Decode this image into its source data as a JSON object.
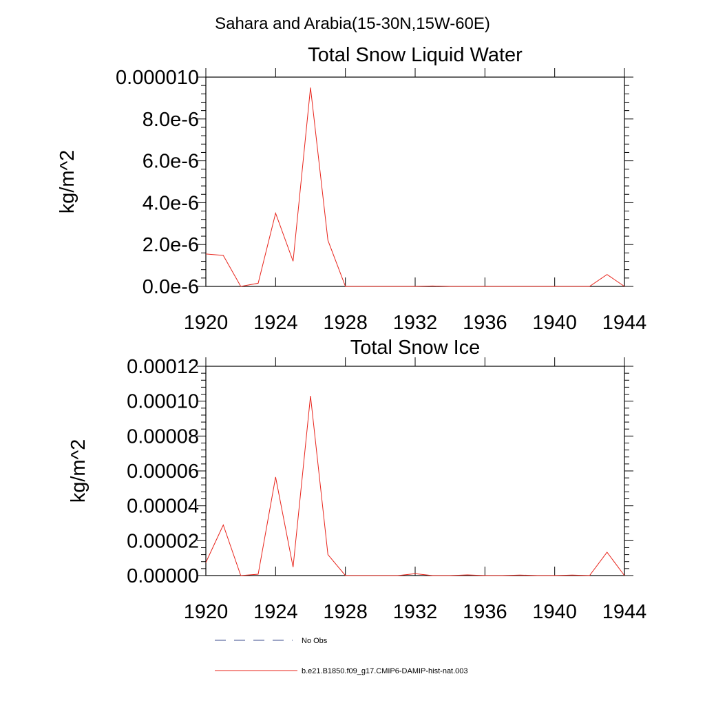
{
  "figure": {
    "suptitle": "Sahara and Arabia(15-30N,15W-60E)"
  },
  "legend": {
    "entries": [
      {
        "label": "No Obs",
        "style": "dashed",
        "color": "#3b4b8c"
      },
      {
        "label": "b.e21.B1850.f09_g17.CMIP6-DAMIP-hist-nat.003",
        "style": "solid",
        "color": "#e8231a"
      }
    ]
  },
  "chart_data": [
    {
      "type": "line",
      "title": "Total Snow Liquid Water",
      "ylabel": "kg/m^2",
      "xlim": [
        1920,
        1944
      ],
      "ylim": [
        0,
        1e-05
      ],
      "x_ticks": [
        1920,
        1924,
        1928,
        1932,
        1936,
        1940,
        1944
      ],
      "x_tick_labels": [
        "1920",
        "1924",
        "1928",
        "1932",
        "1936",
        "1940",
        "1944"
      ],
      "y_ticks": [
        0,
        2e-06,
        4e-06,
        6e-06,
        8e-06,
        1e-05
      ],
      "y_tick_labels": [
        "0.0e-6",
        "2.0e-6",
        "4.0e-6",
        "6.0e-6",
        "8.0e-6",
        "0.000010"
      ],
      "series": [
        {
          "name": "b.e21.B1850.f09_g17.CMIP6-DAMIP-hist-nat.003",
          "color": "#e8231a",
          "x": [
            1920,
            1921,
            1922,
            1923,
            1924,
            1925,
            1926,
            1927,
            1928,
            1929,
            1930,
            1931,
            1932,
            1933,
            1934,
            1935,
            1936,
            1937,
            1938,
            1939,
            1940,
            1941,
            1942,
            1943,
            1944
          ],
          "y": [
            1.55e-06,
            1.48e-06,
            0,
            1.5e-07,
            3.5e-06,
            1.2e-06,
            9.5e-06,
            2.2e-06,
            0,
            0,
            0,
            0,
            0,
            2e-08,
            0,
            0,
            0,
            0,
            0,
            0,
            0,
            0,
            0,
            5.7e-07,
            0
          ]
        }
      ]
    },
    {
      "type": "line",
      "title": "Total Snow Ice",
      "ylabel": "kg/m^2",
      "xlim": [
        1920,
        1944
      ],
      "ylim": [
        0,
        0.00012
      ],
      "x_ticks": [
        1920,
        1924,
        1928,
        1932,
        1936,
        1940,
        1944
      ],
      "x_tick_labels": [
        "1920",
        "1924",
        "1928",
        "1932",
        "1936",
        "1940",
        "1944"
      ],
      "y_ticks": [
        0,
        2e-05,
        4e-05,
        6e-05,
        8e-05,
        0.0001,
        0.00012
      ],
      "y_tick_labels": [
        "0.00000",
        "0.00002",
        "0.00004",
        "0.00006",
        "0.00008",
        "0.00010",
        "0.00012"
      ],
      "series": [
        {
          "name": "b.e21.B1850.f09_g17.CMIP6-DAMIP-hist-nat.003",
          "color": "#e8231a",
          "x": [
            1920,
            1921,
            1922,
            1923,
            1924,
            1925,
            1926,
            1927,
            1928,
            1929,
            1930,
            1931,
            1932,
            1933,
            1934,
            1935,
            1936,
            1937,
            1938,
            1939,
            1940,
            1941,
            1942,
            1943,
            1944
          ],
          "y": [
            7.5e-06,
            2.9e-05,
            0,
            8e-07,
            5.65e-05,
            4.8e-06,
            0.000103,
            1.2e-05,
            0,
            0,
            0,
            0,
            1.1e-06,
            0,
            0,
            4e-07,
            0,
            0,
            3e-07,
            0,
            0,
            3e-07,
            0,
            1.34e-05,
            0
          ]
        }
      ]
    }
  ]
}
